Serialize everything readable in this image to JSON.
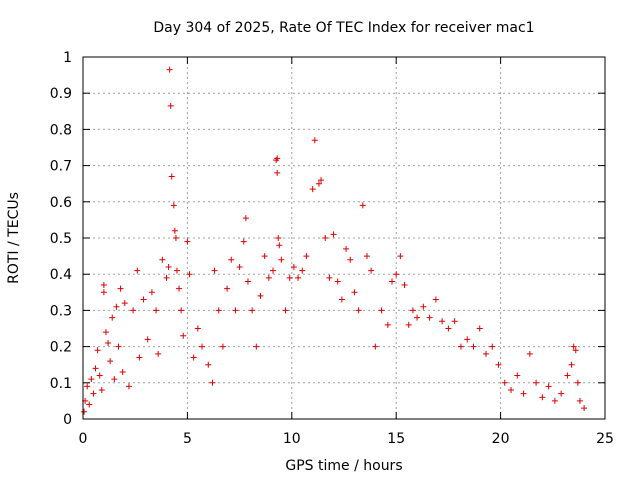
{
  "chart_data": {
    "type": "scatter",
    "title": "Day 304 of 2025, Rate Of TEC Index for receiver mac1",
    "xlabel": "GPS time / hours",
    "ylabel": "ROTI / TECUs",
    "xlim": [
      0,
      25
    ],
    "ylim": [
      0,
      1
    ],
    "xticks": [
      0,
      5,
      10,
      15,
      20,
      25
    ],
    "xtick_labels": [
      "0",
      "5",
      "10",
      "15",
      "20",
      "25"
    ],
    "yticks": [
      0,
      0.1,
      0.2,
      0.3,
      0.4,
      0.5,
      0.6,
      0.7,
      0.8,
      0.9,
      1
    ],
    "ytick_labels": [
      "0",
      "0.1",
      "0.2",
      "0.3",
      "0.4",
      "0.5",
      "0.6",
      "0.7",
      "0.8",
      "0.9",
      "1"
    ],
    "grid": true,
    "legend": "none",
    "marker": "+",
    "color": "#e00000",
    "points": [
      [
        0.05,
        0.02
      ],
      [
        0.1,
        0.05
      ],
      [
        0.2,
        0.09
      ],
      [
        0.3,
        0.04
      ],
      [
        0.4,
        0.11
      ],
      [
        0.5,
        0.07
      ],
      [
        0.6,
        0.14
      ],
      [
        0.7,
        0.19
      ],
      [
        0.8,
        0.12
      ],
      [
        0.9,
        0.08
      ],
      [
        1.0,
        0.37
      ],
      [
        1.0,
        0.35
      ],
      [
        1.1,
        0.24
      ],
      [
        1.2,
        0.21
      ],
      [
        1.3,
        0.16
      ],
      [
        1.4,
        0.28
      ],
      [
        1.5,
        0.11
      ],
      [
        1.6,
        0.31
      ],
      [
        1.7,
        0.2
      ],
      [
        1.8,
        0.36
      ],
      [
        1.9,
        0.13
      ],
      [
        2.0,
        0.32
      ],
      [
        2.2,
        0.09
      ],
      [
        2.4,
        0.3
      ],
      [
        2.6,
        0.41
      ],
      [
        2.7,
        0.17
      ],
      [
        2.9,
        0.33
      ],
      [
        3.1,
        0.22
      ],
      [
        3.3,
        0.35
      ],
      [
        3.5,
        0.3
      ],
      [
        3.6,
        0.18
      ],
      [
        3.8,
        0.44
      ],
      [
        4.0,
        0.39
      ],
      [
        4.1,
        0.42
      ],
      [
        4.15,
        0.965
      ],
      [
        4.2,
        0.865
      ],
      [
        4.25,
        0.67
      ],
      [
        4.35,
        0.59
      ],
      [
        4.4,
        0.52
      ],
      [
        4.45,
        0.5
      ],
      [
        4.5,
        0.41
      ],
      [
        4.6,
        0.36
      ],
      [
        4.7,
        0.3
      ],
      [
        4.8,
        0.23
      ],
      [
        5.0,
        0.49
      ],
      [
        5.1,
        0.4
      ],
      [
        5.3,
        0.17
      ],
      [
        5.5,
        0.25
      ],
      [
        5.7,
        0.2
      ],
      [
        6.0,
        0.15
      ],
      [
        6.2,
        0.1
      ],
      [
        6.3,
        0.41
      ],
      [
        6.5,
        0.3
      ],
      [
        6.7,
        0.2
      ],
      [
        6.9,
        0.36
      ],
      [
        7.1,
        0.44
      ],
      [
        7.3,
        0.3
      ],
      [
        7.5,
        0.42
      ],
      [
        7.7,
        0.49
      ],
      [
        7.8,
        0.555
      ],
      [
        7.9,
        0.38
      ],
      [
        8.1,
        0.3
      ],
      [
        8.3,
        0.2
      ],
      [
        8.5,
        0.34
      ],
      [
        8.7,
        0.45
      ],
      [
        8.9,
        0.39
      ],
      [
        9.1,
        0.41
      ],
      [
        9.25,
        0.715
      ],
      [
        9.3,
        0.72
      ],
      [
        9.3,
        0.68
      ],
      [
        9.35,
        0.5
      ],
      [
        9.4,
        0.48
      ],
      [
        9.5,
        0.44
      ],
      [
        9.7,
        0.3
      ],
      [
        9.9,
        0.39
      ],
      [
        10.1,
        0.42
      ],
      [
        10.3,
        0.39
      ],
      [
        10.5,
        0.41
      ],
      [
        10.7,
        0.45
      ],
      [
        11.0,
        0.635
      ],
      [
        11.1,
        0.77
      ],
      [
        11.3,
        0.65
      ],
      [
        11.4,
        0.66
      ],
      [
        11.6,
        0.5
      ],
      [
        11.8,
        0.39
      ],
      [
        12.0,
        0.51
      ],
      [
        12.2,
        0.38
      ],
      [
        12.4,
        0.33
      ],
      [
        12.6,
        0.47
      ],
      [
        12.8,
        0.44
      ],
      [
        13.0,
        0.35
      ],
      [
        13.2,
        0.3
      ],
      [
        13.4,
        0.59
      ],
      [
        13.6,
        0.45
      ],
      [
        13.8,
        0.41
      ],
      [
        14.0,
        0.2
      ],
      [
        14.3,
        0.3
      ],
      [
        14.6,
        0.26
      ],
      [
        14.8,
        0.38
      ],
      [
        15.0,
        0.4
      ],
      [
        15.2,
        0.45
      ],
      [
        15.4,
        0.37
      ],
      [
        15.6,
        0.26
      ],
      [
        15.8,
        0.3
      ],
      [
        16.0,
        0.28
      ],
      [
        16.3,
        0.31
      ],
      [
        16.6,
        0.28
      ],
      [
        16.9,
        0.33
      ],
      [
        17.2,
        0.27
      ],
      [
        17.5,
        0.25
      ],
      [
        17.8,
        0.27
      ],
      [
        18.1,
        0.2
      ],
      [
        18.4,
        0.22
      ],
      [
        18.7,
        0.2
      ],
      [
        19.0,
        0.25
      ],
      [
        19.3,
        0.18
      ],
      [
        19.6,
        0.2
      ],
      [
        19.9,
        0.15
      ],
      [
        20.2,
        0.1
      ],
      [
        20.5,
        0.08
      ],
      [
        20.8,
        0.12
      ],
      [
        21.1,
        0.07
      ],
      [
        21.4,
        0.18
      ],
      [
        21.7,
        0.1
      ],
      [
        22.0,
        0.06
      ],
      [
        22.3,
        0.09
      ],
      [
        22.6,
        0.05
      ],
      [
        22.9,
        0.07
      ],
      [
        23.2,
        0.12
      ],
      [
        23.4,
        0.15
      ],
      [
        23.5,
        0.2
      ],
      [
        23.6,
        0.19
      ],
      [
        23.7,
        0.1
      ],
      [
        23.8,
        0.05
      ],
      [
        24.0,
        0.03
      ]
    ]
  }
}
